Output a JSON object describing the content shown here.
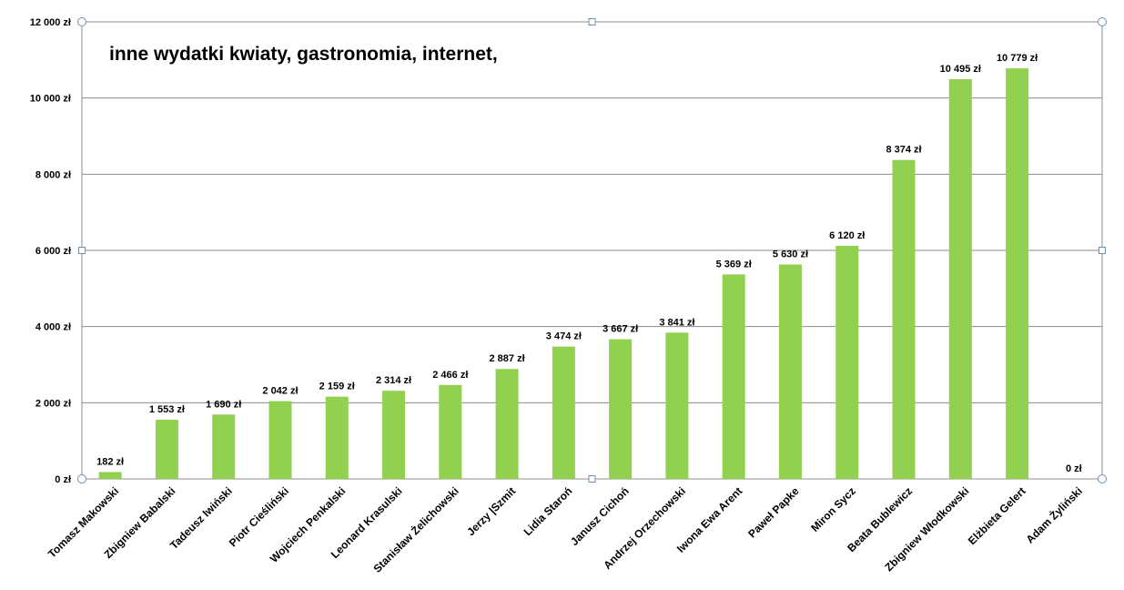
{
  "chart_data": {
    "type": "bar",
    "title": "inne wydatki kwiaty, gastronomia, internet,",
    "xlabel": "",
    "ylabel": "",
    "ylim": [
      0,
      12000
    ],
    "yticks": [
      0,
      2000,
      4000,
      6000,
      8000,
      10000,
      12000
    ],
    "ytick_labels": [
      "0 zł",
      "2 000 zł",
      "4 000 zł",
      "6 000 zł",
      "8 000 zł",
      "10 000 zł",
      "12 000 zł"
    ],
    "grid": true,
    "bar_color": "#92d050",
    "categories": [
      "Tomasz Makowski",
      "Zbigniew Babalski",
      "Tadeusz Iwiński",
      "Piotr Cieśliński",
      "Wojciech Penkalski",
      "Leonard Krasulski",
      "Stanisław Żelichowski",
      "Jerzy |Szmit",
      "Lidia Staroń",
      "Janusz Cichoń",
      "Andrzej Orzechowski",
      "Iwona Ewa Arent",
      "Paweł Papke",
      "Miron Sycz",
      "Beata Bublewicz",
      "Zbigniew Włodkowski",
      "Elżbieta Gelert",
      "Adam Żyliński"
    ],
    "values": [
      182,
      1553,
      1690,
      2042,
      2159,
      2314,
      2466,
      2887,
      3474,
      3667,
      3841,
      5369,
      5630,
      6120,
      8374,
      10495,
      10779,
      0
    ],
    "data_labels": [
      "182 zł",
      "1 553 zł",
      "1 690 zł",
      "2 042 zł",
      "2 159 zł",
      "2 314 zł",
      "2 466 zł",
      "2 887 zł",
      "3 474 zł",
      "3 667 zł",
      "3 841 zł",
      "5 369 zł",
      "5 630 zł",
      "6 120 zł",
      "8 374 zł",
      "10 495 zł",
      "10 779 zł",
      "0 zł"
    ]
  }
}
